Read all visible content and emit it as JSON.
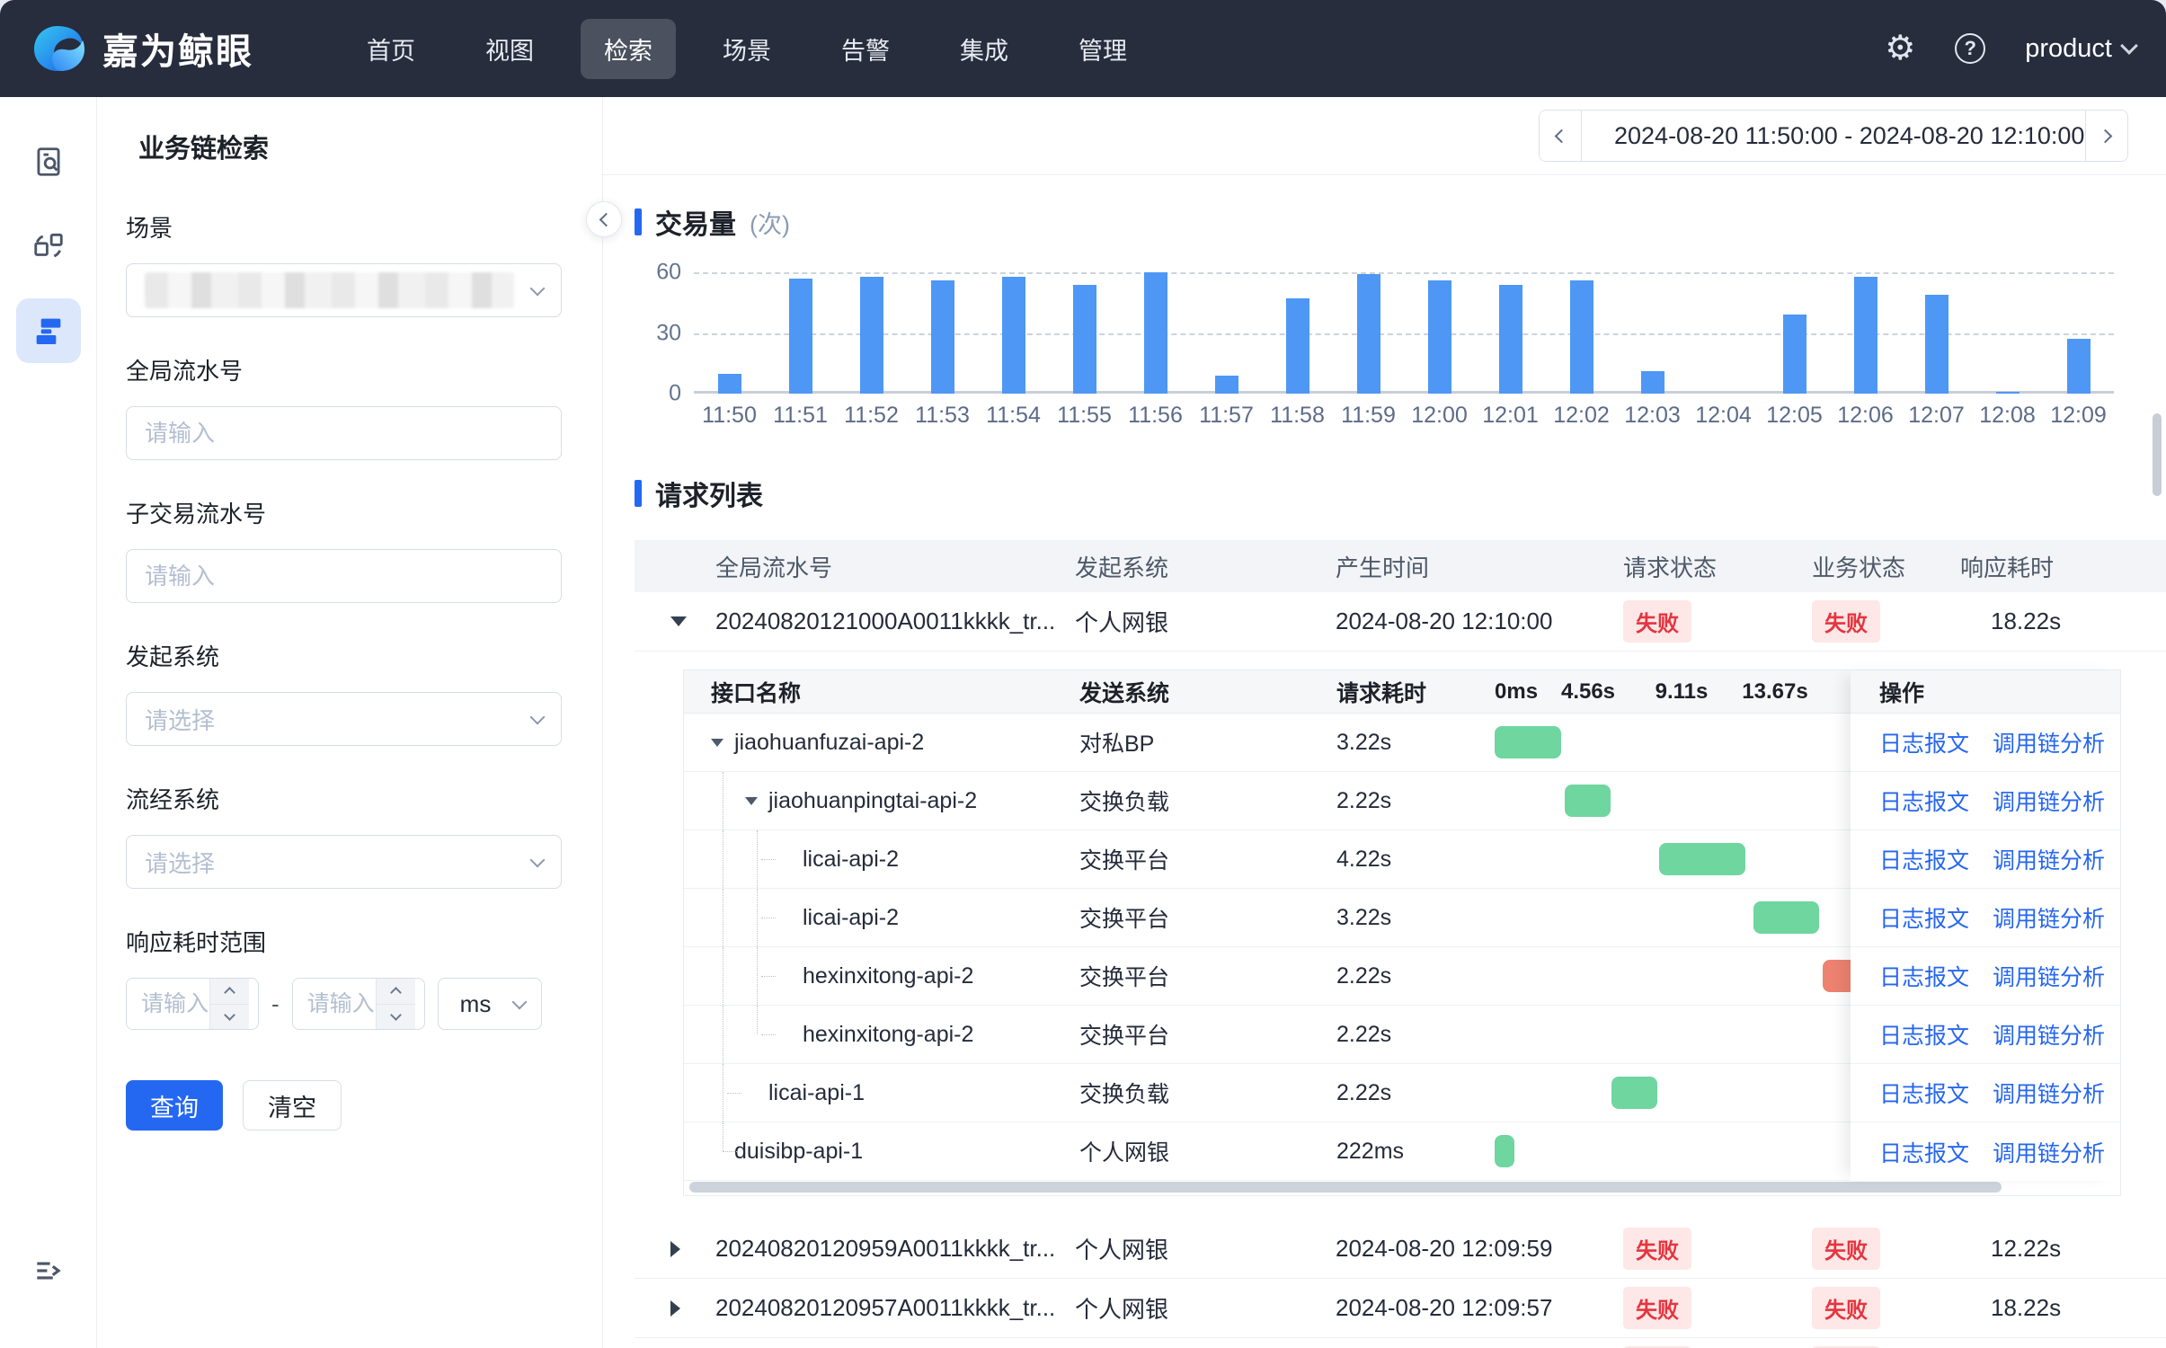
{
  "navbar": {
    "brand": "嘉为鲸眼",
    "items": [
      {
        "label": "首页",
        "active": false
      },
      {
        "label": "视图",
        "active": false
      },
      {
        "label": "检索",
        "active": true
      },
      {
        "label": "场景",
        "active": false
      },
      {
        "label": "告警",
        "active": false
      },
      {
        "label": "集成",
        "active": false
      },
      {
        "label": "管理",
        "active": false
      }
    ],
    "icons": {
      "settings": "⚙",
      "help": "?"
    },
    "user": {
      "label": "product"
    }
  },
  "sidebar": {
    "icons": [
      "doc-search-icon",
      "components-icon",
      "business-chain-icon",
      "menu-expand-icon"
    ],
    "selected": "business-chain-icon"
  },
  "page": {
    "title": "业务链检索"
  },
  "datebar": {
    "range": "2024-08-20 11:50:00 - 2024-08-20 12:10:00"
  },
  "filters": {
    "scene_label": "场景",
    "global_serial_label": "全局流水号",
    "sub_serial_label": "子交易流水号",
    "origin_system_label": "发起系统",
    "flow_system_label": "流经系统",
    "latency_range_label": "响应耗时范围",
    "input_placeholder": "请输入",
    "select_placeholder": "请选择",
    "range_dash": "-",
    "unit_value": "ms",
    "query_label": "查询",
    "clear_label": "清空"
  },
  "colors": {
    "accent": "#2468F2",
    "bar_blue": "#4E97F4",
    "gantt_green": "#6FD69F",
    "gantt_red": "#ED8270",
    "fail_text": "#E5353F",
    "fail_bg": "#FDE8E7",
    "navbar_bg": "#272D3D"
  },
  "chart_data": {
    "type": "bar",
    "title": "交易量",
    "unit_label": "(次)",
    "categories": [
      "11:50",
      "11:51",
      "11:52",
      "11:53",
      "11:54",
      "11:55",
      "11:56",
      "11:57",
      "11:58",
      "11:59",
      "12:00",
      "12:01",
      "12:02",
      "12:03",
      "12:04",
      "12:05",
      "12:06",
      "12:07",
      "12:08",
      "12:09"
    ],
    "values": [
      10,
      57,
      58,
      56,
      58,
      54,
      60,
      9,
      47,
      59,
      56,
      54,
      56,
      11,
      0,
      39,
      58,
      49,
      1,
      27
    ],
    "xlabel": "",
    "ylabel": "",
    "ylim": [
      0,
      60
    ],
    "yticks": [
      0,
      30,
      60
    ],
    "grid": "dashed-horizontal",
    "legend": "none"
  },
  "request_list": {
    "section_title": "请求列表",
    "columns": [
      "全局流水号",
      "发起系统",
      "产生时间",
      "请求状态",
      "业务状态",
      "响应耗时"
    ],
    "rows": [
      {
        "id": "20240820121000A0011kkkk_tr...",
        "system": "个人网银",
        "time": "2024-08-20 12:10:00",
        "req_status": "失败",
        "biz_status": "失败",
        "elapsed": "18.22s",
        "expanded": true
      },
      {
        "id": "20240820120959A0011kkkk_tr...",
        "system": "个人网银",
        "time": "2024-08-20 12:09:59",
        "req_status": "失败",
        "biz_status": "失败",
        "elapsed": "12.22s",
        "expanded": false
      },
      {
        "id": "20240820120957A0011kkkk_tr...",
        "system": "个人网银",
        "time": "2024-08-20 12:09:57",
        "req_status": "失败",
        "biz_status": "失败",
        "elapsed": "18.22s",
        "expanded": false
      }
    ],
    "partial_row": {
      "req_status": "失败",
      "biz_status": "失败"
    },
    "detail": {
      "columns": [
        "接口名称",
        "发送系统",
        "请求耗时"
      ],
      "time_marks": [
        "0ms",
        "4.56s",
        "9.11s",
        "13.67s"
      ],
      "actions_column": "操作",
      "action_labels": [
        "日志报文",
        "调用链分析"
      ],
      "total_duration_s": 18.22,
      "rows": [
        {
          "name": "jiaohuanfuzai-api-2",
          "level": 0,
          "expandable": true,
          "system": "对私BP",
          "elapsed": "3.22s",
          "bar_start_s": 0,
          "bar_dur_s": 3.22,
          "bar_color": "green"
        },
        {
          "name": "jiaohuanpingtai-api-2",
          "level": 1,
          "expandable": true,
          "system": "交换负载",
          "elapsed": "2.22s",
          "bar_start_s": 3.43,
          "bar_dur_s": 2.22,
          "bar_color": "green"
        },
        {
          "name": "licai-api-2",
          "level": 2,
          "expandable": false,
          "system": "交换平台",
          "elapsed": "4.22s",
          "bar_start_s": 8.0,
          "bar_dur_s": 4.22,
          "bar_color": "green"
        },
        {
          "name": "licai-api-2",
          "level": 2,
          "expandable": false,
          "system": "交换平台",
          "elapsed": "3.22s",
          "bar_start_s": 12.6,
          "bar_dur_s": 3.22,
          "bar_color": "green"
        },
        {
          "name": "hexinxitong-api-2",
          "level": 2,
          "expandable": false,
          "system": "交换平台",
          "elapsed": "2.22s",
          "bar_start_s": 16.0,
          "bar_dur_s": 2.22,
          "bar_color": "red"
        },
        {
          "name": "hexinxitong-api-2",
          "level": 2,
          "expandable": false,
          "system": "交换平台",
          "elapsed": "2.22s",
          "bar_start_s": 18.0,
          "bar_dur_s": 2.22,
          "bar_color": "red"
        },
        {
          "name": "licai-api-1",
          "level": 1,
          "expandable": false,
          "system": "交换负载",
          "elapsed": "2.22s",
          "bar_start_s": 5.7,
          "bar_dur_s": 2.22,
          "bar_color": "green"
        },
        {
          "name": "duisibp-api-1",
          "level": 0,
          "expandable": false,
          "system": "个人网银",
          "elapsed": "222ms",
          "bar_start_s": 0,
          "bar_dur_s": 0.222,
          "bar_color": "green"
        }
      ]
    }
  }
}
